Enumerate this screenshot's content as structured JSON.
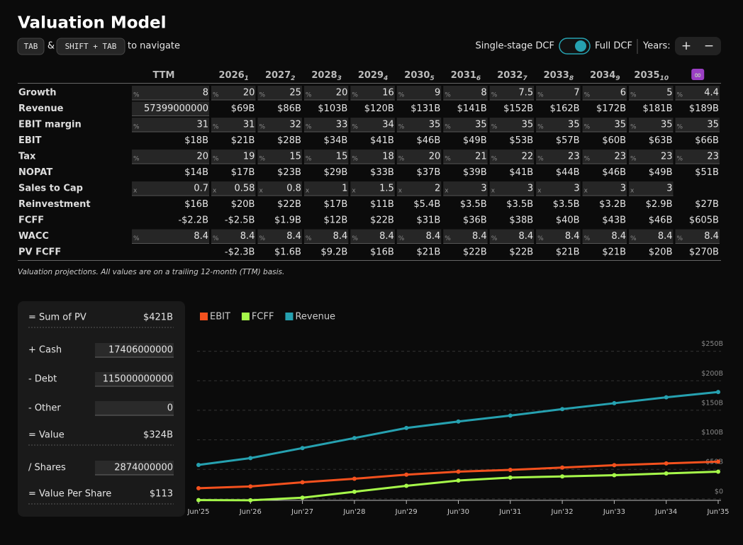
{
  "header": {
    "title": "Valuation Model",
    "keys": [
      "TAB",
      "SHIFT + TAB"
    ],
    "joiner": "&",
    "hint": "to navigate"
  },
  "controls": {
    "single": "Single-stage DCF",
    "full": "Full DCF",
    "years": "Years:",
    "plus": "+",
    "minus": "−"
  },
  "table": {
    "columns": [
      {
        "label": "TTM"
      },
      {
        "label": "2026",
        "sub": "1"
      },
      {
        "label": "2027",
        "sub": "2"
      },
      {
        "label": "2028",
        "sub": "3"
      },
      {
        "label": "2029",
        "sub": "4"
      },
      {
        "label": "2030",
        "sub": "5"
      },
      {
        "label": "2031",
        "sub": "6"
      },
      {
        "label": "2032",
        "sub": "7"
      },
      {
        "label": "2033",
        "sub": "8"
      },
      {
        "label": "2034",
        "sub": "9"
      },
      {
        "label": "2035",
        "sub": "10"
      },
      {
        "label": "∞",
        "badge": true
      }
    ],
    "rows": [
      {
        "label": "Growth",
        "unit": "%",
        "input": true,
        "cells": [
          "8",
          "20",
          "25",
          "20",
          "16",
          "9",
          "8",
          "7.5",
          "7",
          "6",
          "5",
          "4.4"
        ]
      },
      {
        "label": "Revenue",
        "input": "ttm",
        "cells": [
          "57399000000",
          "$69B",
          "$86B",
          "$103B",
          "$120B",
          "$131B",
          "$141B",
          "$152B",
          "$162B",
          "$172B",
          "$181B",
          "$189B"
        ]
      },
      {
        "label": "EBIT margin",
        "unit": "%",
        "input": true,
        "cells": [
          "31",
          "31",
          "32",
          "33",
          "34",
          "35",
          "35",
          "35",
          "35",
          "35",
          "35",
          "35"
        ]
      },
      {
        "label": "EBIT",
        "cells": [
          "$18B",
          "$21B",
          "$28B",
          "$34B",
          "$41B",
          "$46B",
          "$49B",
          "$53B",
          "$57B",
          "$60B",
          "$63B",
          "$66B"
        ]
      },
      {
        "label": "Tax",
        "unit": "%",
        "input": true,
        "cells": [
          "20",
          "19",
          "15",
          "15",
          "18",
          "20",
          "21",
          "22",
          "23",
          "23",
          "23",
          "23"
        ]
      },
      {
        "label": "NOPAT",
        "cells": [
          "$14B",
          "$17B",
          "$23B",
          "$29B",
          "$33B",
          "$37B",
          "$39B",
          "$41B",
          "$44B",
          "$46B",
          "$49B",
          "$51B"
        ]
      },
      {
        "label": "Sales to Cap",
        "unit": "x",
        "input": true,
        "cells": [
          "0.7",
          "0.58",
          "0.8",
          "1",
          "1.5",
          "2",
          "3",
          "3",
          "3",
          "3",
          "3",
          null
        ]
      },
      {
        "label": "Reinvestment",
        "cells": [
          "$16B",
          "$20B",
          "$22B",
          "$17B",
          "$11B",
          "$5.4B",
          "$3.5B",
          "$3.5B",
          "$3.5B",
          "$3.2B",
          "$2.9B",
          "$27B"
        ]
      },
      {
        "label": "FCFF",
        "cells": [
          "-$2.2B",
          "-$2.5B",
          "$1.9B",
          "$12B",
          "$22B",
          "$31B",
          "$36B",
          "$38B",
          "$40B",
          "$43B",
          "$46B",
          "$605B"
        ]
      },
      {
        "label": "WACC",
        "unit": "%",
        "input": true,
        "cells": [
          "8.4",
          "8.4",
          "8.4",
          "8.4",
          "8.4",
          "8.4",
          "8.4",
          "8.4",
          "8.4",
          "8.4",
          "8.4",
          "8.4"
        ]
      },
      {
        "label": "PV FCFF",
        "cells": [
          null,
          "-$2.3B",
          "$1.6B",
          "$9.2B",
          "$16B",
          "$21B",
          "$22B",
          "$22B",
          "$21B",
          "$21B",
          "$20B",
          "$270B"
        ]
      }
    ],
    "caption": "Valuation projections. All values are on a trailing 12-month (TTM) basis."
  },
  "summary": {
    "rows": [
      {
        "label": "= Sum of PV",
        "value": "$421B"
      },
      {
        "label": "+ Cash",
        "value": "17406000000",
        "input": true
      },
      {
        "label": "- Debt",
        "value": "115000000000",
        "input": true
      },
      {
        "label": "- Other",
        "value": "0",
        "input": true
      },
      {
        "label": "= Value",
        "value": "$324B"
      },
      {
        "label": "/ Shares",
        "value": "2874000000",
        "input": true
      },
      {
        "label": "= Value Per Share",
        "value": "$113"
      }
    ]
  },
  "chart_data": {
    "type": "line",
    "categories": [
      "Jun'25",
      "Jun'26",
      "Jun'27",
      "Jun'28",
      "Jun'29",
      "Jun'30",
      "Jun'31",
      "Jun'32",
      "Jun'33",
      "Jun'34",
      "Jun'35"
    ],
    "series": [
      {
        "name": "EBIT",
        "color": "#f4511e",
        "values": [
          18,
          21,
          28,
          34,
          41,
          46,
          49,
          53,
          57,
          60,
          63
        ]
      },
      {
        "name": "FCFF",
        "color": "#a6f94a",
        "values": [
          -2.2,
          -2.5,
          1.9,
          12,
          22,
          31,
          36,
          38,
          40,
          43,
          46
        ]
      },
      {
        "name": "Revenue",
        "color": "#26a1b0",
        "values": [
          57.4,
          69,
          86,
          103,
          120,
          131,
          141,
          152,
          162,
          172,
          181
        ]
      }
    ],
    "ylim": [
      -5,
      270
    ],
    "yticks": [
      {
        "value": 0,
        "label": "$0"
      },
      {
        "value": 50,
        "label": "$50B"
      },
      {
        "value": 100,
        "label": "$100B"
      },
      {
        "value": 150,
        "label": "$150B"
      },
      {
        "value": 200,
        "label": "$200B"
      },
      {
        "value": 250,
        "label": "$250B"
      }
    ],
    "grid": true
  }
}
